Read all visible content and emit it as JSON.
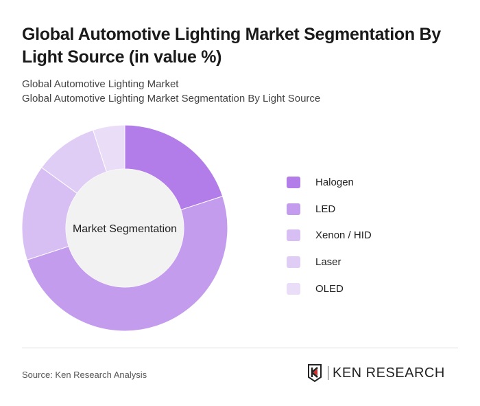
{
  "title": "Global Automotive Lighting Market Segmentation By Light Source (in value %)",
  "subtitle1": "Global Automotive Lighting Market",
  "subtitle2": "Global Automotive Lighting Market Segmentation By Light Source",
  "source": "Source: Ken Research Analysis",
  "logo_text": "KEN RESEARCH",
  "chart_data": {
    "type": "pie",
    "center_label": "Market Segmentation",
    "categories": [
      "Halogen",
      "LED",
      "Xenon / HID",
      "Laser",
      "OLED"
    ],
    "values": [
      20,
      50,
      15,
      10,
      5
    ],
    "colors": [
      "#b27de8",
      "#c49cee",
      "#d7bef3",
      "#e0cdf6",
      "#e9ddf8"
    ],
    "legend_position": "right"
  }
}
